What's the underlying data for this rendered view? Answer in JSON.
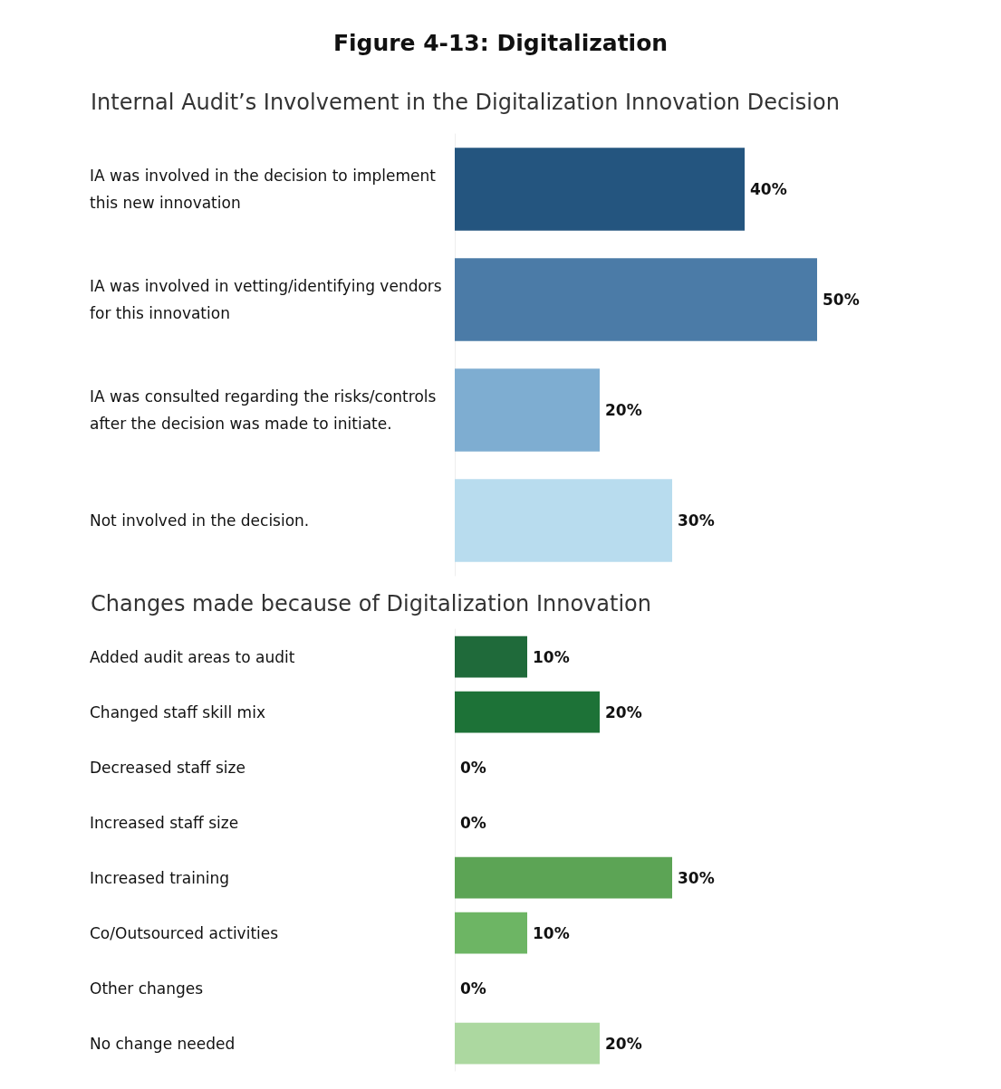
{
  "chart_data": [
    {
      "type": "bar",
      "orientation": "horizontal",
      "title": "Figure 4-13: Digitalization",
      "subtitle": "Internal Audit’s Involvement in the Digitalization Innovation Decision",
      "categories": [
        "IA was involved in the decision to implement this new innovation",
        "IA was involved in vetting/identifying vendors for this innovation",
        "IA was consulted regarding the risks/controls after the decision was made to initiate.",
        "Not involved in the decision."
      ],
      "values": [
        40,
        50,
        20,
        30
      ],
      "value_labels": [
        "40%",
        "50%",
        "20%",
        "30%"
      ],
      "colors": [
        "#24557f",
        "#4b7ba7",
        "#7eadd1",
        "#b8dcee"
      ]
    },
    {
      "type": "bar",
      "orientation": "horizontal",
      "title": "Changes made because of Digitalization Innovation",
      "categories": [
        "Added audit areas to audit",
        "Changed staff skill mix",
        "Decreased staff size",
        "Increased staff size",
        "Increased training",
        "Co/Outsourced activities",
        "Other changes",
        "No change needed"
      ],
      "values": [
        10,
        20,
        0,
        0,
        30,
        10,
        0,
        20
      ],
      "value_labels": [
        "10%",
        "20%",
        "0%",
        "0%",
        "30%",
        "10%",
        "0%",
        "20%"
      ],
      "colors": [
        "#1f6a3a",
        "#1d7237",
        "#3a8a44",
        "#4a9a4c",
        "#5ca455",
        "#6db564",
        "#8cc87e",
        "#acd8a0"
      ]
    }
  ]
}
